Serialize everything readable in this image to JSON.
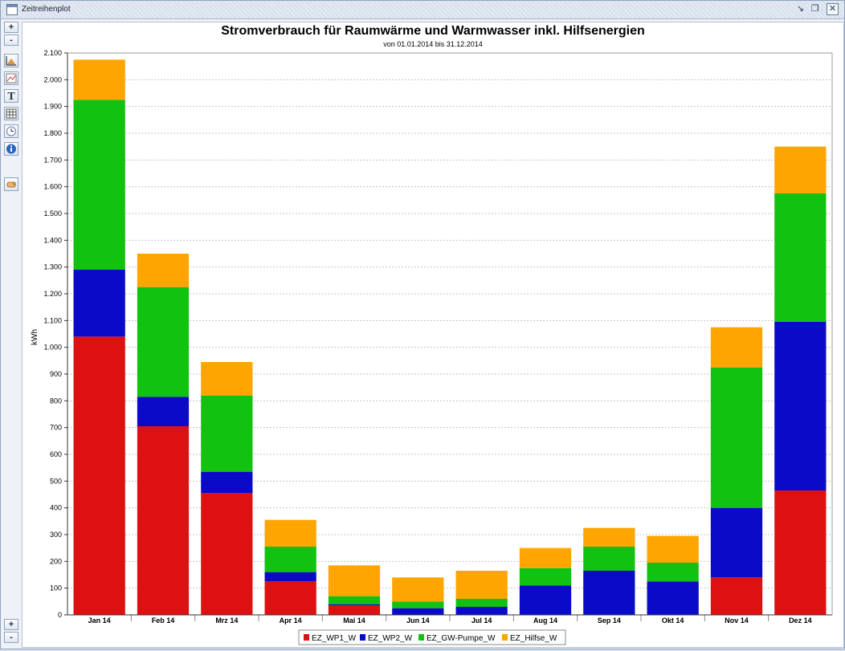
{
  "window": {
    "title": "Zeitreihenplot",
    "controls": [
      "minimize",
      "restore",
      "close"
    ]
  },
  "toolbar": {
    "zoom_in_label": "+",
    "zoom_out_label": "-",
    "buttons": [
      "axes-icon",
      "chart-style-icon",
      "text-icon",
      "table-icon",
      "clock-icon",
      "info-icon",
      "hand-icon"
    ],
    "bottom_plus_label": "+",
    "bottom_minus_label": "-"
  },
  "chart_data": {
    "type": "bar",
    "stacked": true,
    "title": "Stromverbrauch für Raumwärme und Warmwasser inkl. Hilfsenergien",
    "subtitle": "von 01.01.2014 bis 31.12.2014",
    "xlabel": "",
    "ylabel": "kWh",
    "ylim": [
      0,
      2100
    ],
    "yticks": [
      0,
      100,
      200,
      300,
      400,
      500,
      600,
      700,
      800,
      900,
      1000,
      1100,
      1200,
      1300,
      1400,
      1500,
      1600,
      1700,
      1800,
      1900,
      2000,
      2100
    ],
    "ytick_labels": [
      "0",
      "100",
      "200",
      "300",
      "400",
      "500",
      "600",
      "700",
      "800",
      "900",
      "1.000",
      "1.100",
      "1.200",
      "1.300",
      "1.400",
      "1.500",
      "1.600",
      "1.700",
      "1.800",
      "1.900",
      "2.000",
      "2.100"
    ],
    "grid": true,
    "legend_position": "bottom",
    "categories": [
      "Jan 14",
      "Feb 14",
      "Mrz 14",
      "Apr 14",
      "Mai 14",
      "Jun 14",
      "Jul 14",
      "Aug 14",
      "Sep 14",
      "Okt 14",
      "Nov 14",
      "Dez 14"
    ],
    "series": [
      {
        "name": "EZ_WP1_W",
        "color": "#dd1111",
        "values": [
          1040,
          705,
          455,
          125,
          35,
          0,
          0,
          0,
          0,
          0,
          140,
          465
        ]
      },
      {
        "name": "EZ_WP2_W",
        "color": "#0a0ac8",
        "values": [
          250,
          110,
          80,
          35,
          5,
          25,
          30,
          110,
          165,
          125,
          260,
          630
        ]
      },
      {
        "name": "EZ_GW-Pumpe_W",
        "color": "#11c211",
        "values": [
          635,
          410,
          285,
          95,
          30,
          25,
          30,
          65,
          90,
          70,
          525,
          480
        ]
      },
      {
        "name": "EZ_Hilfse_W",
        "color": "#ffa500",
        "values": [
          150,
          125,
          125,
          100,
          115,
          90,
          105,
          75,
          70,
          100,
          150,
          175
        ]
      }
    ]
  }
}
